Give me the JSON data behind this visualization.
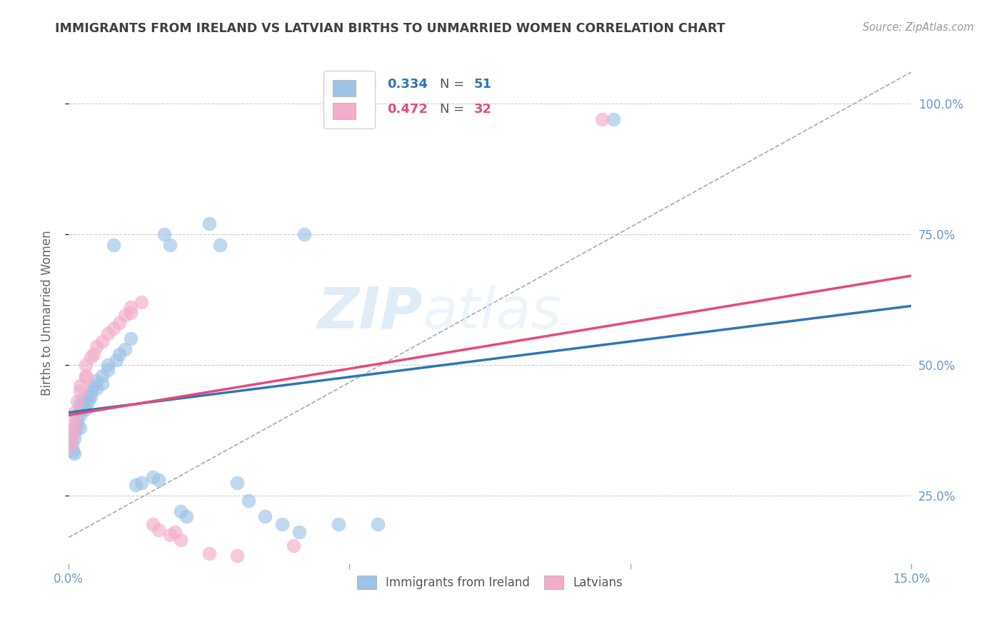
{
  "title": "IMMIGRANTS FROM IRELAND VS LATVIAN BIRTHS TO UNMARRIED WOMEN CORRELATION CHART",
  "source": "Source: ZipAtlas.com",
  "ylabel": "Births to Unmarried Women",
  "xlim": [
    0.0,
    0.15
  ],
  "ylim": [
    0.12,
    1.08
  ],
  "yticks": [
    0.25,
    0.5,
    0.75,
    1.0
  ],
  "ytick_labels": [
    "25.0%",
    "50.0%",
    "75.0%",
    "100.0%"
  ],
  "xticks": [
    0.0,
    0.05,
    0.1,
    0.15
  ],
  "xtick_labels": [
    "0.0%",
    "",
    "",
    "15.0%"
  ],
  "r_blue": 0.334,
  "n_blue": 51,
  "r_pink": 0.472,
  "n_pink": 32,
  "blue_color": "#9DC3E6",
  "pink_color": "#F4ACCA",
  "blue_line_color": "#2E75B6",
  "pink_line_color": "#E8497A",
  "blue_scatter": [
    [
      0.0004,
      0.355
    ],
    [
      0.0006,
      0.345
    ],
    [
      0.0008,
      0.335
    ],
    [
      0.001,
      0.33
    ],
    [
      0.001,
      0.36
    ],
    [
      0.0012,
      0.375
    ],
    [
      0.0015,
      0.395
    ],
    [
      0.0015,
      0.385
    ],
    [
      0.002,
      0.405
    ],
    [
      0.002,
      0.425
    ],
    [
      0.002,
      0.38
    ],
    [
      0.002,
      0.415
    ],
    [
      0.0025,
      0.42
    ],
    [
      0.0025,
      0.435
    ],
    [
      0.003,
      0.43
    ],
    [
      0.003,
      0.415
    ],
    [
      0.0035,
      0.44
    ],
    [
      0.0035,
      0.43
    ],
    [
      0.004,
      0.45
    ],
    [
      0.004,
      0.44
    ],
    [
      0.0045,
      0.46
    ],
    [
      0.005,
      0.455
    ],
    [
      0.005,
      0.47
    ],
    [
      0.006,
      0.48
    ],
    [
      0.006,
      0.465
    ],
    [
      0.007,
      0.49
    ],
    [
      0.007,
      0.5
    ],
    [
      0.0085,
      0.51
    ],
    [
      0.009,
      0.52
    ],
    [
      0.01,
      0.53
    ],
    [
      0.011,
      0.55
    ],
    [
      0.012,
      0.27
    ],
    [
      0.013,
      0.275
    ],
    [
      0.015,
      0.285
    ],
    [
      0.016,
      0.28
    ],
    [
      0.02,
      0.22
    ],
    [
      0.021,
      0.21
    ],
    [
      0.025,
      0.77
    ],
    [
      0.03,
      0.275
    ],
    [
      0.032,
      0.24
    ],
    [
      0.035,
      0.21
    ],
    [
      0.038,
      0.195
    ],
    [
      0.041,
      0.18
    ],
    [
      0.048,
      0.195
    ],
    [
      0.055,
      0.195
    ],
    [
      0.042,
      0.75
    ],
    [
      0.017,
      0.75
    ],
    [
      0.018,
      0.73
    ],
    [
      0.027,
      0.73
    ],
    [
      0.097,
      0.97
    ],
    [
      0.008,
      0.73
    ]
  ],
  "pink_scatter": [
    [
      0.0002,
      0.375
    ],
    [
      0.0004,
      0.345
    ],
    [
      0.0006,
      0.36
    ],
    [
      0.001,
      0.38
    ],
    [
      0.001,
      0.395
    ],
    [
      0.0012,
      0.41
    ],
    [
      0.0015,
      0.43
    ],
    [
      0.002,
      0.45
    ],
    [
      0.002,
      0.46
    ],
    [
      0.003,
      0.48
    ],
    [
      0.003,
      0.5
    ],
    [
      0.003,
      0.475
    ],
    [
      0.004,
      0.515
    ],
    [
      0.0045,
      0.52
    ],
    [
      0.005,
      0.535
    ],
    [
      0.006,
      0.545
    ],
    [
      0.007,
      0.56
    ],
    [
      0.008,
      0.57
    ],
    [
      0.009,
      0.58
    ],
    [
      0.01,
      0.595
    ],
    [
      0.011,
      0.61
    ],
    [
      0.011,
      0.6
    ],
    [
      0.013,
      0.62
    ],
    [
      0.015,
      0.195
    ],
    [
      0.016,
      0.185
    ],
    [
      0.018,
      0.175
    ],
    [
      0.019,
      0.18
    ],
    [
      0.02,
      0.165
    ],
    [
      0.025,
      0.14
    ],
    [
      0.03,
      0.135
    ],
    [
      0.04,
      0.155
    ],
    [
      0.095,
      0.97
    ]
  ],
  "watermark_zip": "ZIP",
  "watermark_atlas": "atlas",
  "background_color": "#FFFFFF",
  "grid_color": "#CCCCCC",
  "title_color": "#404040",
  "axis_label_color": "#666666",
  "tick_color": "#6699CC"
}
